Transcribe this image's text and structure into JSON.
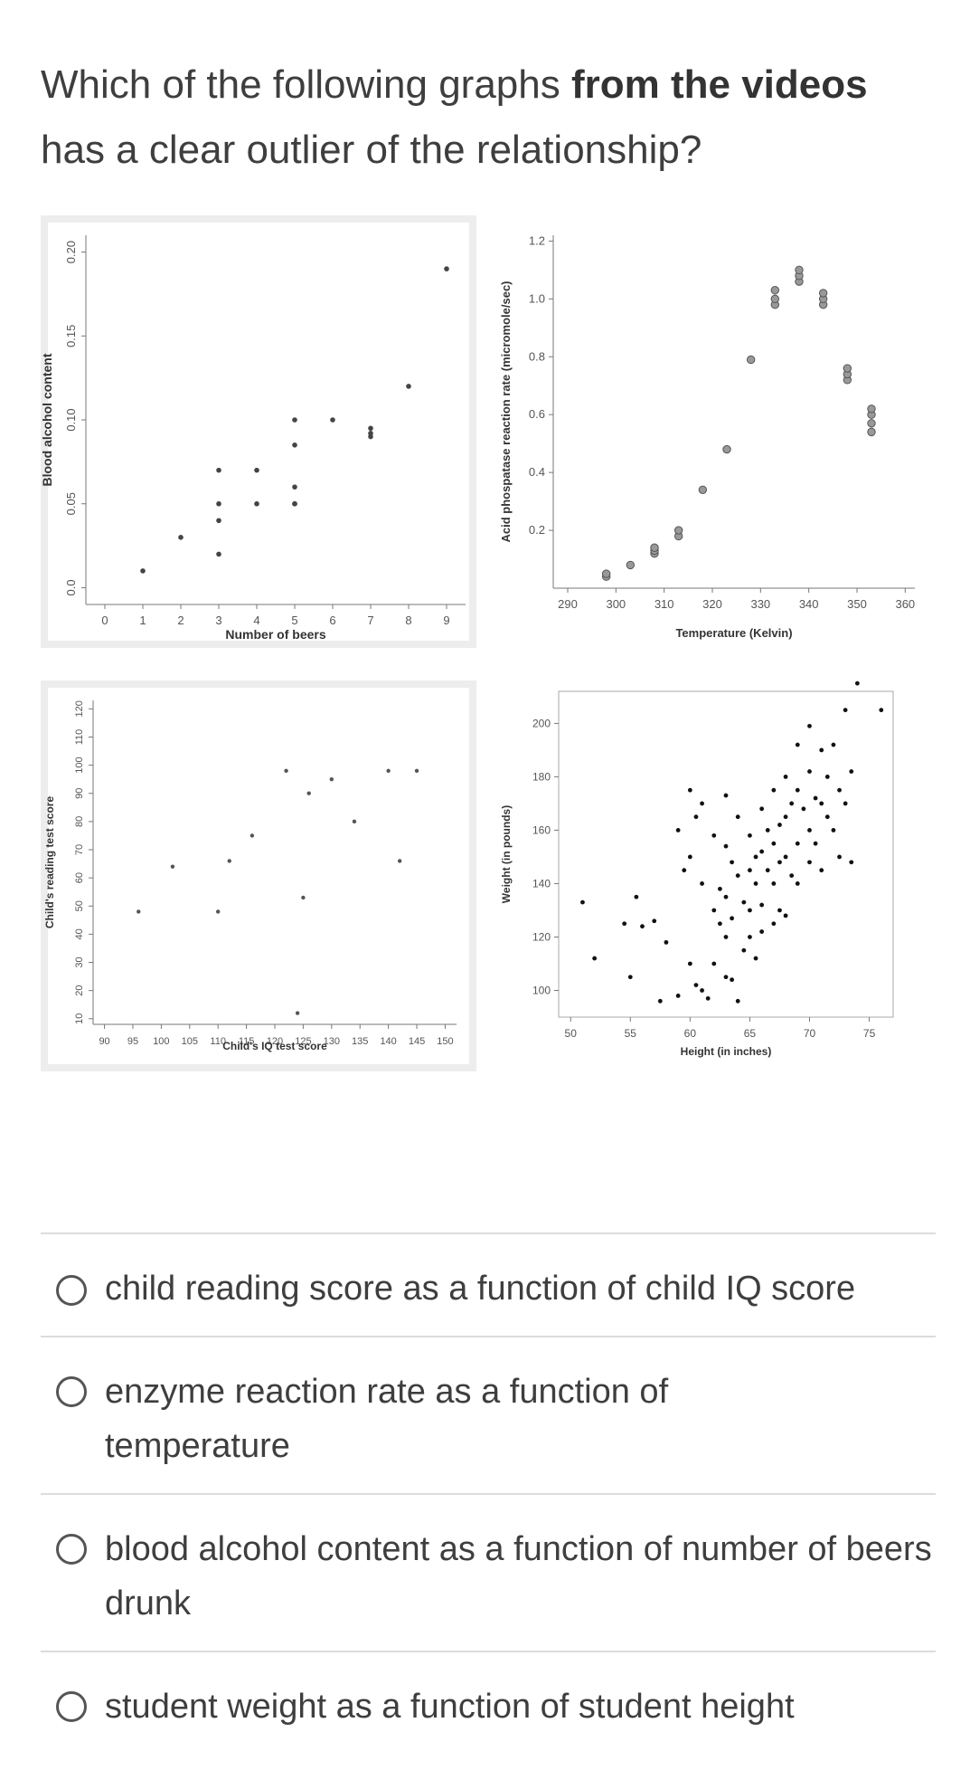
{
  "question": {
    "part1": "Which of the following graphs ",
    "bold": "from the videos",
    "part2": " has a clear outlier of the relationship?"
  },
  "options": [
    {
      "label": "child reading score as a function of child IQ score"
    },
    {
      "label": "enzyme reaction rate as a function of temperature"
    },
    {
      "label": "blood alcohol content as a function of number of beers drunk"
    },
    {
      "label": "student weight as a function of student height"
    }
  ],
  "chart_data": [
    {
      "type": "scatter",
      "xlabel": "Number of beers",
      "ylabel": "Blood alcohol content",
      "xlim": [
        -0.5,
        9.5
      ],
      "ylim": [
        -0.01,
        0.21
      ],
      "xticks": [
        "0",
        "1",
        "2",
        "3",
        "4",
        "5",
        "6",
        "7",
        "8",
        "9"
      ],
      "yticks": [
        "0.0",
        "0.05",
        "0.10",
        "0.15",
        "0.20"
      ],
      "x": [
        1,
        2,
        3,
        3,
        3,
        3,
        4,
        4,
        5,
        5,
        5,
        5,
        5,
        6,
        7,
        7,
        7,
        8,
        9
      ],
      "y": [
        0.01,
        0.03,
        0.07,
        0.04,
        0.02,
        0.05,
        0.07,
        0.05,
        0.1,
        0.085,
        0.06,
        0.05,
        0.05,
        0.1,
        0.09,
        0.095,
        0.092,
        0.12,
        0.19
      ]
    },
    {
      "type": "scatter",
      "xlabel": "Temperature (Kelvin)",
      "ylabel": "Acid phospatase reaction rate (micromole/sec)",
      "xlim": [
        287,
        362
      ],
      "ylim": [
        0,
        1.22
      ],
      "xticks": [
        "290",
        "300",
        "310",
        "320",
        "330",
        "340",
        "350",
        "360"
      ],
      "yticks": [
        "0.2",
        "0.4",
        "0.6",
        "0.8",
        "1.0",
        "1.2"
      ],
      "x": [
        298,
        298,
        303,
        308,
        308,
        308,
        313,
        313,
        318,
        323,
        328,
        333,
        333,
        333,
        338,
        338,
        338,
        343,
        343,
        343,
        348,
        348,
        348,
        353,
        353,
        353,
        353
      ],
      "y": [
        0.04,
        0.05,
        0.08,
        0.12,
        0.13,
        0.14,
        0.18,
        0.2,
        0.34,
        0.48,
        0.79,
        0.98,
        1.0,
        1.03,
        1.06,
        1.08,
        1.1,
        0.98,
        1.0,
        1.02,
        0.72,
        0.74,
        0.76,
        0.54,
        0.57,
        0.6,
        0.62
      ]
    },
    {
      "type": "scatter",
      "xlabel": "Child's IQ test score",
      "ylabel": "Child's reading test score",
      "xlim": [
        88,
        152
      ],
      "ylim": [
        8,
        123
      ],
      "xticks": [
        "90",
        "95",
        "100",
        "105",
        "110",
        "115",
        "120",
        "125",
        "130",
        "135",
        "140",
        "145",
        "150"
      ],
      "yticks": [
        "10",
        "20",
        "30",
        "40",
        "50",
        "60",
        "70",
        "80",
        "90",
        "100",
        "110",
        "120"
      ],
      "x": [
        96,
        102,
        110,
        112,
        116,
        122,
        124,
        125,
        126,
        130,
        134,
        140,
        142,
        145
      ],
      "y": [
        48,
        64,
        48,
        66,
        75,
        98,
        12,
        53,
        90,
        95,
        80,
        98,
        66,
        98
      ]
    },
    {
      "type": "scatter",
      "xlabel": "Height (in inches)",
      "ylabel": "Weight (in pounds)",
      "xlim": [
        49,
        77
      ],
      "ylim": [
        90,
        212
      ],
      "xticks": [
        "50",
        "55",
        "60",
        "65",
        "70",
        "75"
      ],
      "yticks": [
        "100",
        "120",
        "140",
        "160",
        "180",
        "200"
      ],
      "x": [
        51,
        52,
        54.5,
        55,
        55.5,
        56,
        57,
        57.5,
        58,
        59,
        59,
        59.5,
        60,
        60,
        60,
        60.5,
        60.5,
        61,
        61,
        61,
        61.5,
        62,
        62,
        62,
        62.5,
        62.5,
        63,
        63,
        63,
        63,
        63,
        63.5,
        63.5,
        63.5,
        64,
        64,
        64,
        64.5,
        64.5,
        65,
        65,
        65,
        65,
        65.5,
        65.5,
        65.5,
        66,
        66,
        66,
        66,
        66.5,
        66.5,
        67,
        67,
        67,
        67,
        67.5,
        67.5,
        67.5,
        68,
        68,
        68,
        68,
        68.5,
        68.5,
        69,
        69,
        69,
        69,
        69.5,
        70,
        70,
        70,
        70,
        70.5,
        70.5,
        71,
        71,
        71,
        71.5,
        71.5,
        72,
        72,
        72.5,
        72.5,
        73,
        73,
        73.5,
        73.5,
        74,
        76
      ],
      "y": [
        133,
        112,
        125,
        105,
        135,
        124,
        126,
        96,
        118,
        160,
        98,
        145,
        175,
        150,
        110,
        165,
        102,
        100,
        170,
        140,
        97,
        158,
        130,
        110,
        138,
        125,
        173,
        154,
        135,
        120,
        105,
        148,
        127,
        104,
        165,
        143,
        96,
        133,
        115,
        158,
        145,
        130,
        120,
        150,
        140,
        112,
        168,
        152,
        132,
        122,
        160,
        145,
        175,
        155,
        140,
        125,
        162,
        148,
        130,
        180,
        165,
        150,
        128,
        170,
        143,
        192,
        175,
        155,
        140,
        168,
        199,
        182,
        160,
        148,
        172,
        155,
        190,
        170,
        145,
        180,
        165,
        192,
        160,
        175,
        150,
        205,
        170,
        148,
        182,
        215,
        205
      ],
      "note_outlier": "none"
    }
  ]
}
